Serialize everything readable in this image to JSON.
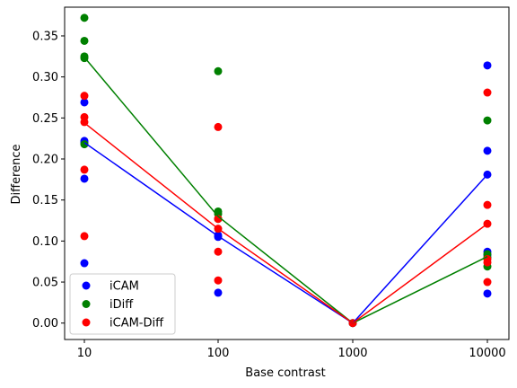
{
  "chart_data": {
    "type": "scatter",
    "title": "",
    "xlabel": "Base contrast",
    "ylabel": "Difference",
    "x_categories": [
      "10",
      "100",
      "1000",
      "10000"
    ],
    "ylim": [
      -0.02,
      0.385
    ],
    "yticks": [
      0.0,
      0.05,
      0.1,
      0.15,
      0.2,
      0.25,
      0.3,
      0.35
    ],
    "ytick_labels": [
      "0.00",
      "0.05",
      "0.10",
      "0.15",
      "0.20",
      "0.25",
      "0.30",
      "0.35"
    ],
    "grid": false,
    "legend_position": "lower-left",
    "series": [
      {
        "name": "iCAM",
        "color": "#0000ff",
        "points": {
          "10": [
            0.269,
            0.222,
            0.22,
            0.176,
            0.073
          ],
          "100": [
            0.107,
            0.105,
            0.037
          ],
          "1000": [
            0.0
          ],
          "10000": [
            0.314,
            0.21,
            0.181,
            0.087,
            0.083,
            0.036
          ]
        },
        "line_y": [
          0.22,
          0.106,
          0.0,
          0.181
        ]
      },
      {
        "name": "iDiff",
        "color": "#008000",
        "points": {
          "10": [
            0.372,
            0.344,
            0.325,
            0.323,
            0.218
          ],
          "100": [
            0.307,
            0.136,
            0.133,
            0.127
          ],
          "1000": [
            0.0
          ],
          "10000": [
            0.247,
            0.084,
            0.08,
            0.069
          ]
        },
        "line_y": [
          0.324,
          0.13,
          0.0,
          0.081
        ]
      },
      {
        "name": "iCAM-Diff",
        "color": "#ff0000",
        "points": {
          "10": [
            0.277,
            0.251,
            0.245,
            0.187,
            0.106
          ],
          "100": [
            0.239,
            0.127,
            0.115,
            0.087,
            0.052
          ],
          "1000": [
            0.0
          ],
          "10000": [
            0.281,
            0.144,
            0.121,
            0.078,
            0.074,
            0.05
          ]
        },
        "line_y": [
          0.244,
          0.115,
          0.0,
          0.121
        ]
      }
    ]
  }
}
